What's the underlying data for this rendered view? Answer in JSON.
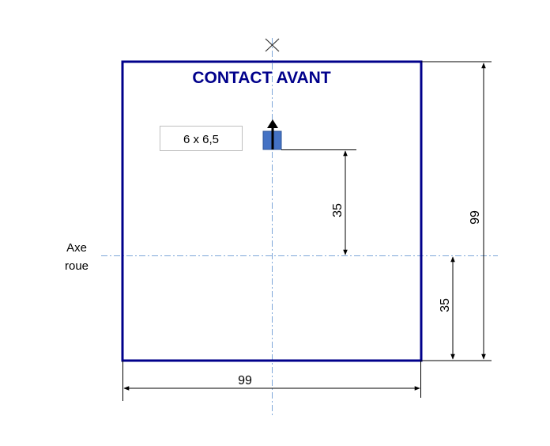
{
  "title": "CONTACT AVANT",
  "component_size_label": "6 x 6,5",
  "axis_label": {
    "line1": "Axe",
    "line2": "roue"
  },
  "dimensions": {
    "bottom_width": "99",
    "right_height": "99",
    "component_to_axis": "35",
    "axis_to_bottom": "35"
  },
  "colors": {
    "frame": "#00008b",
    "title": "#00008b",
    "component_fill": "#4472c4",
    "centerline": "#7da6d9",
    "dimension_line": "#000000",
    "label_border": "#bfbfbf"
  },
  "icons": {
    "center_marker": "x-mark-icon",
    "direction_arrow": "up-arrow-icon"
  }
}
